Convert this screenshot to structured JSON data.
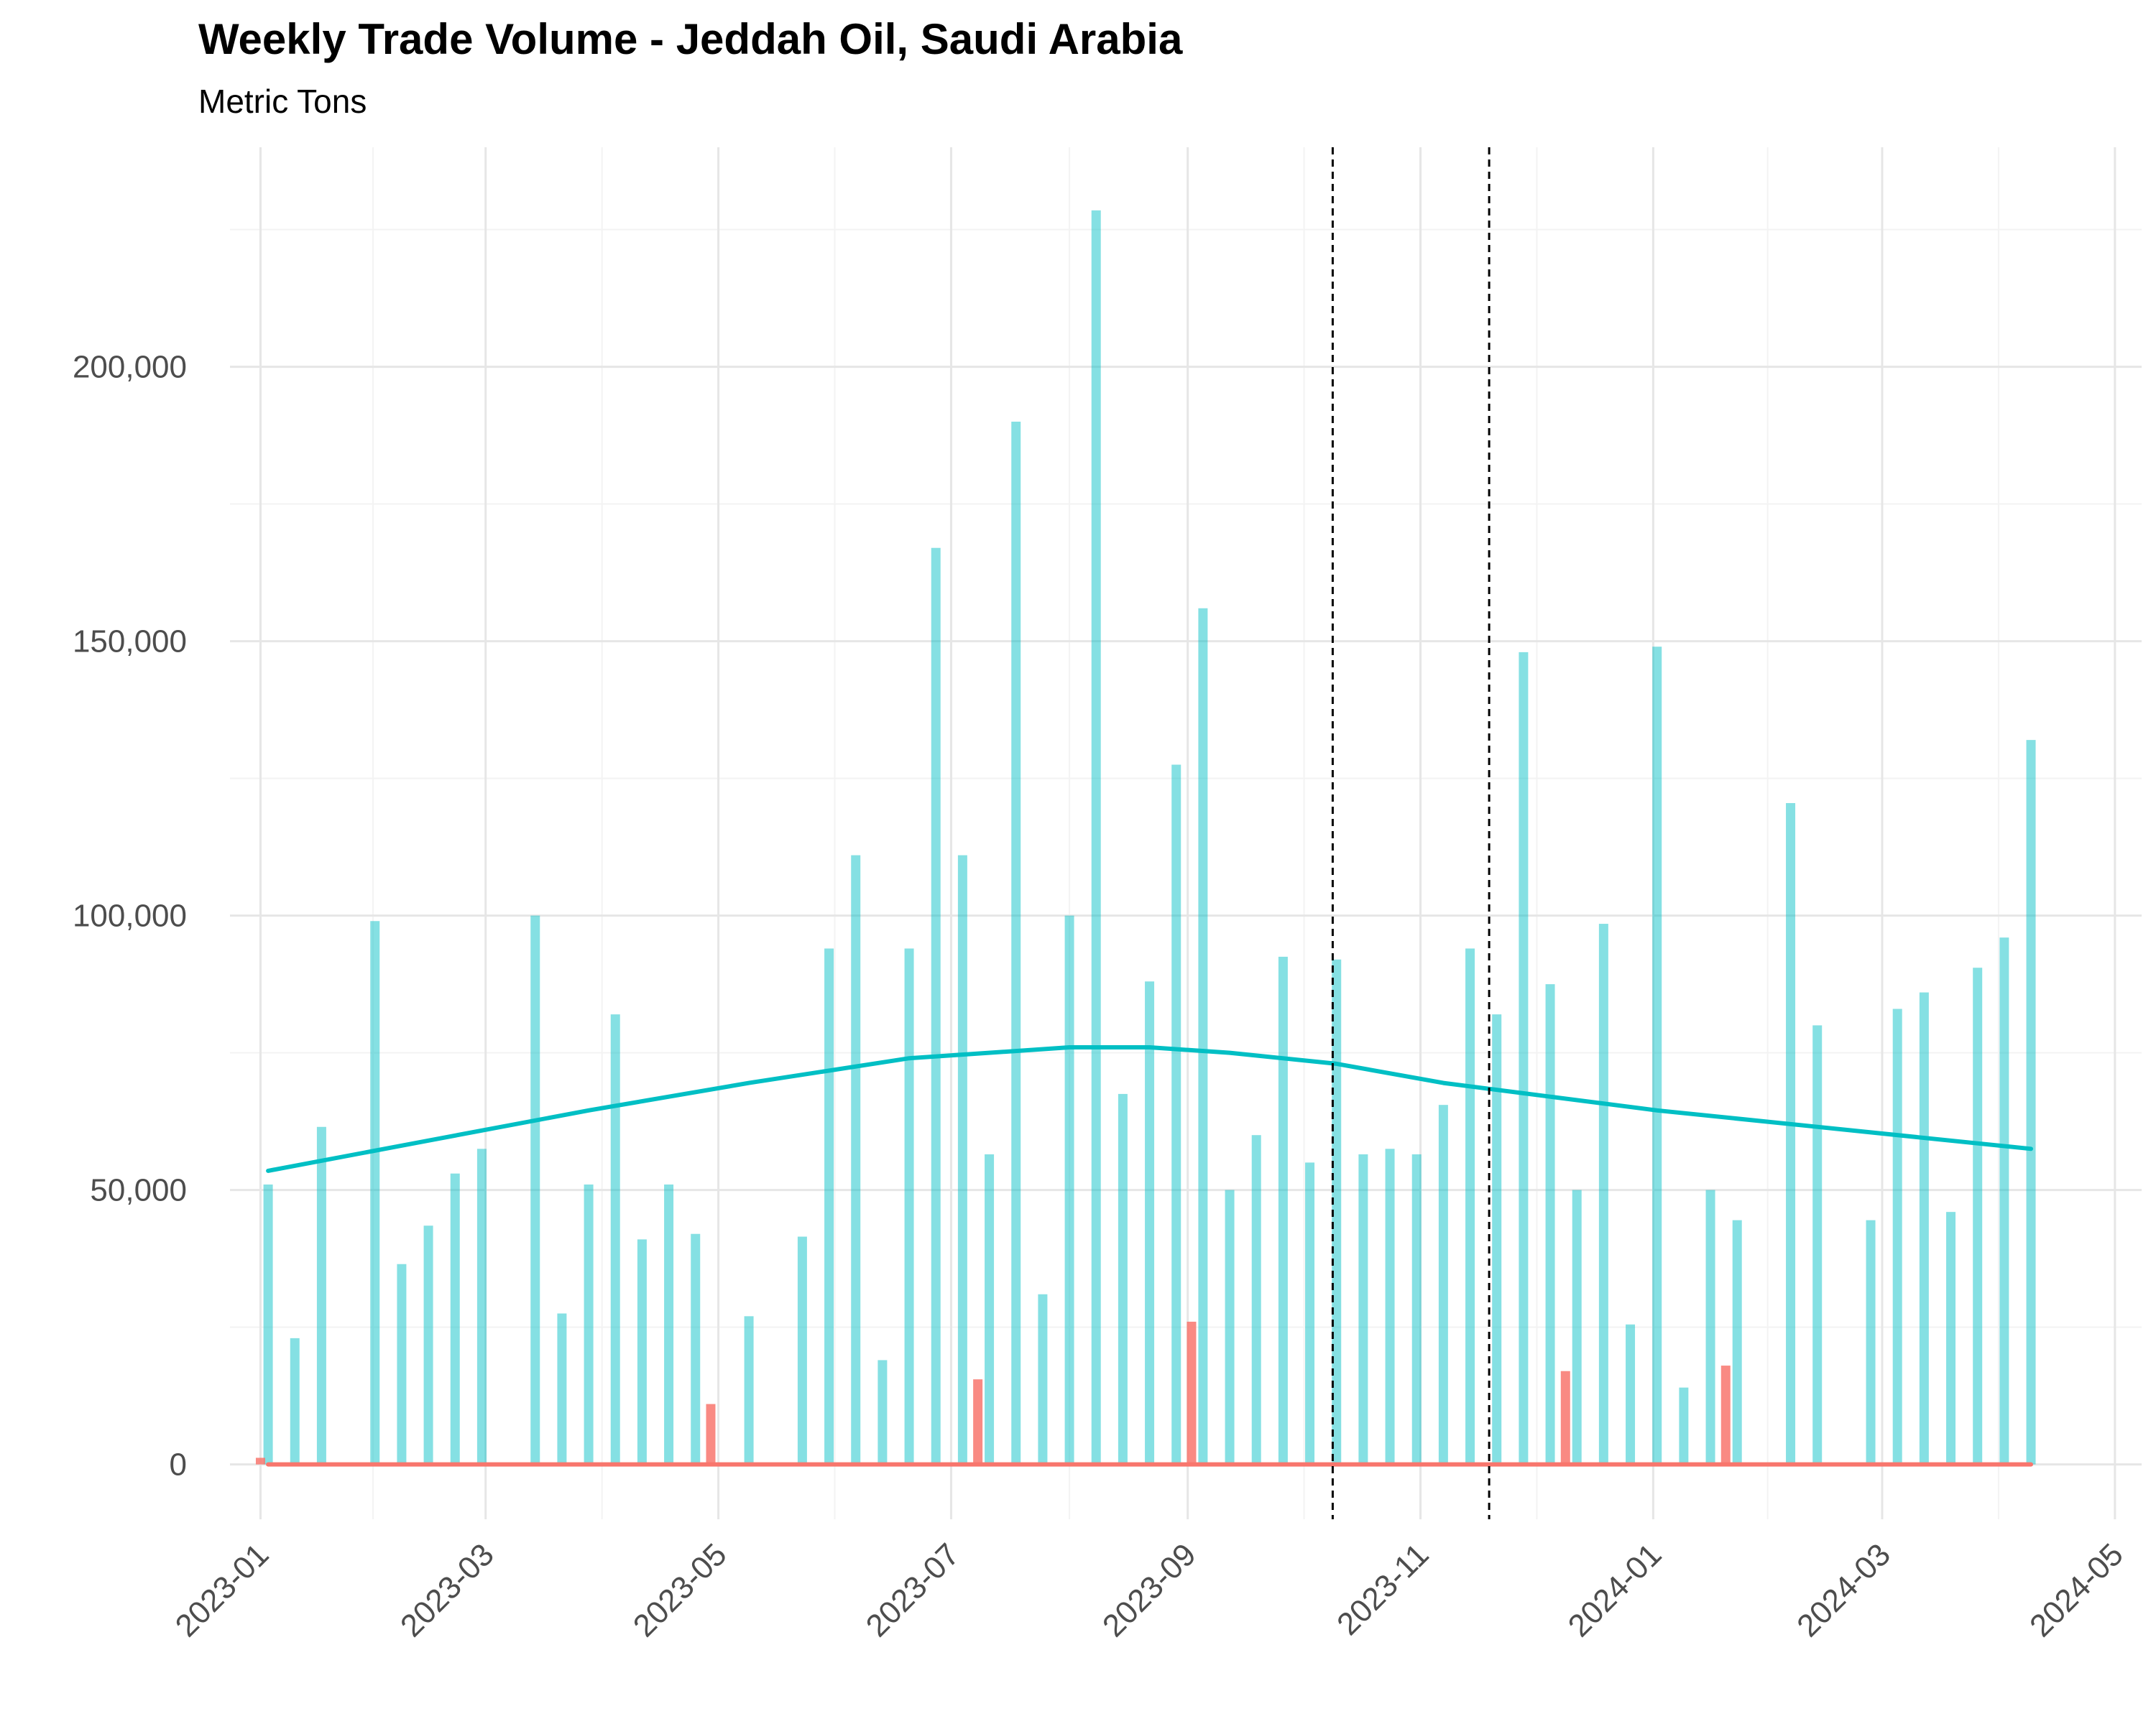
{
  "chart_data": {
    "type": "bar",
    "title": "Weekly Trade Volume - Jeddah Oil, Saudi Arabia",
    "subtitle": "Metric Tons",
    "xlabel": "",
    "ylabel": "",
    "ylim": [
      -10000,
      240000
    ],
    "x_range": [
      "2022-12-24",
      "2024-05-08"
    ],
    "y_ticks": [
      {
        "value": 0,
        "label": "0"
      },
      {
        "value": 50000,
        "label": "50,000"
      },
      {
        "value": 100000,
        "label": "100,000"
      },
      {
        "value": 150000,
        "label": "150,000"
      },
      {
        "value": 200000,
        "label": "200,000"
      }
    ],
    "x_ticks": [
      {
        "date": "2023-01-01",
        "label": "2023-01"
      },
      {
        "date": "2023-03-01",
        "label": "2023-03"
      },
      {
        "date": "2023-05-01",
        "label": "2023-05"
      },
      {
        "date": "2023-07-01",
        "label": "2023-07"
      },
      {
        "date": "2023-09-01",
        "label": "2023-09"
      },
      {
        "date": "2023-11-01",
        "label": "2023-11"
      },
      {
        "date": "2024-01-01",
        "label": "2024-01"
      },
      {
        "date": "2024-03-01",
        "label": "2024-03"
      },
      {
        "date": "2024-05-01",
        "label": "2024-05"
      }
    ],
    "grid": true,
    "vlines": [
      "2023-10-09",
      "2023-11-19"
    ],
    "series": [
      {
        "color": "#00BFC4",
        "bar_opacity": 0.48,
        "points": [
          [
            "2023-01-03",
            51000
          ],
          [
            "2023-01-10",
            23000
          ],
          [
            "2023-01-17",
            61500
          ],
          [
            "2023-01-31",
            99000
          ],
          [
            "2023-02-07",
            36500
          ],
          [
            "2023-02-14",
            43500
          ],
          [
            "2023-02-21",
            53000
          ],
          [
            "2023-02-28",
            57500
          ],
          [
            "2023-03-14",
            100000
          ],
          [
            "2023-03-21",
            27500
          ],
          [
            "2023-03-28",
            51000
          ],
          [
            "2023-04-04",
            82000
          ],
          [
            "2023-04-11",
            41000
          ],
          [
            "2023-04-18",
            51000
          ],
          [
            "2023-04-25",
            42000
          ],
          [
            "2023-05-09",
            27000
          ],
          [
            "2023-05-23",
            41500
          ],
          [
            "2023-05-30",
            94000
          ],
          [
            "2023-06-06",
            111000
          ],
          [
            "2023-06-13",
            19000
          ],
          [
            "2023-06-20",
            94000
          ],
          [
            "2023-06-27",
            167000
          ],
          [
            "2023-07-04",
            111000
          ],
          [
            "2023-07-11",
            56500
          ],
          [
            "2023-07-18",
            190000
          ],
          [
            "2023-07-25",
            31000
          ],
          [
            "2023-08-01",
            100000
          ],
          [
            "2023-08-08",
            228500
          ],
          [
            "2023-08-15",
            67500
          ],
          [
            "2023-08-22",
            88000
          ],
          [
            "2023-08-29",
            127500
          ],
          [
            "2023-09-05",
            156000
          ],
          [
            "2023-09-12",
            50000
          ],
          [
            "2023-09-19",
            60000
          ],
          [
            "2023-09-26",
            92500
          ],
          [
            "2023-10-03",
            55000
          ],
          [
            "2023-10-10",
            92000
          ],
          [
            "2023-10-17",
            56500
          ],
          [
            "2023-10-24",
            57500
          ],
          [
            "2023-10-31",
            56500
          ],
          [
            "2023-11-07",
            65500
          ],
          [
            "2023-11-14",
            94000
          ],
          [
            "2023-11-21",
            82000
          ],
          [
            "2023-11-28",
            148000
          ],
          [
            "2023-12-05",
            87500
          ],
          [
            "2023-12-12",
            50000
          ],
          [
            "2023-12-19",
            98500
          ],
          [
            "2023-12-26",
            25500
          ],
          [
            "2024-01-02",
            149000
          ],
          [
            "2024-01-09",
            14000
          ],
          [
            "2024-01-16",
            50000
          ],
          [
            "2024-01-23",
            44500
          ],
          [
            "2024-02-06",
            120500
          ],
          [
            "2024-02-13",
            80000
          ],
          [
            "2024-02-27",
            44500
          ],
          [
            "2024-03-05",
            83000
          ],
          [
            "2024-03-12",
            86000
          ],
          [
            "2024-03-19",
            46000
          ],
          [
            "2024-03-26",
            90500
          ],
          [
            "2024-04-02",
            96000
          ],
          [
            "2024-04-09",
            132000
          ]
        ],
        "trend": [
          [
            "2023-01-03",
            53500
          ],
          [
            "2023-02-14",
            59000
          ],
          [
            "2023-03-28",
            64500
          ],
          [
            "2023-05-09",
            69500
          ],
          [
            "2023-06-20",
            74000
          ],
          [
            "2023-08-01",
            76000
          ],
          [
            "2023-08-22",
            76000
          ],
          [
            "2023-09-12",
            75000
          ],
          [
            "2023-10-10",
            73000
          ],
          [
            "2023-11-07",
            69500
          ],
          [
            "2023-12-05",
            67000
          ],
          [
            "2024-01-02",
            64500
          ],
          [
            "2024-02-13",
            61500
          ],
          [
            "2024-03-26",
            58500
          ],
          [
            "2024-04-09",
            57500
          ]
        ]
      },
      {
        "color": "#F8766D",
        "bar_opacity": 0.85,
        "points": [
          [
            "2023-01-01",
            1200
          ],
          [
            "2023-04-29",
            11000
          ],
          [
            "2023-07-08",
            15500
          ],
          [
            "2023-09-02",
            26000
          ],
          [
            "2023-12-09",
            17000
          ],
          [
            "2024-01-20",
            18000
          ]
        ],
        "trend": [
          [
            "2023-01-03",
            0
          ],
          [
            "2024-04-09",
            0
          ]
        ]
      }
    ]
  }
}
